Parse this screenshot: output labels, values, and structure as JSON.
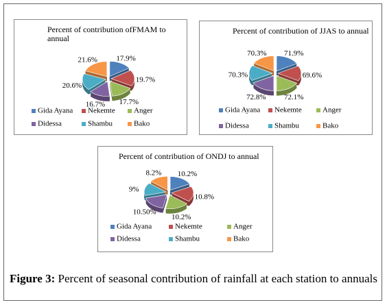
{
  "chart_data": [
    {
      "type": "pie",
      "title": "Percent of contribution ofFMAM to annual",
      "categories": [
        "Gida Ayana",
        "Nekemte",
        "Anger",
        "Didessa",
        "Shambu",
        "Bako"
      ],
      "values": [
        17.9,
        19.7,
        17.7,
        16.7,
        20.6,
        21.6
      ],
      "value_labels": [
        "17.9%",
        "19.7%",
        "17.7%",
        "16.7%",
        "20.6%",
        "21.6%"
      ],
      "colors": [
        "#4f81bd",
        "#c0504d",
        "#9bbb59",
        "#8064a2",
        "#4bacc6",
        "#f79646"
      ]
    },
    {
      "type": "pie",
      "title": "Percent of contribution of JJAS to annual",
      "categories": [
        "Gida Ayana",
        "Nekemte",
        "Anger",
        "Didessa",
        "Shambu",
        "Bako"
      ],
      "values": [
        71.9,
        69.6,
        72.1,
        72.8,
        70.3,
        70.3
      ],
      "value_labels": [
        "71.9%",
        "69.6%",
        "72.1%",
        "72.8%",
        "70.3%",
        "70.3%"
      ],
      "colors": [
        "#4f81bd",
        "#c0504d",
        "#9bbb59",
        "#8064a2",
        "#4bacc6",
        "#f79646"
      ]
    },
    {
      "type": "pie",
      "title": "Percent of contribution of  ONDJ to annual",
      "categories": [
        "Gida Ayana",
        "Nekemte",
        "Anger",
        "Didessa",
        "Shambu",
        "Bako"
      ],
      "values": [
        10.2,
        10.8,
        10.2,
        10.5,
        9,
        8.2
      ],
      "value_labels": [
        "10.2%",
        "10.8%",
        "10.2%",
        "10.50%",
        "9%",
        "8.2%"
      ],
      "colors": [
        "#4f81bd",
        "#c0504d",
        "#9bbb59",
        "#8064a2",
        "#4bacc6",
        "#f79646"
      ]
    }
  ],
  "caption": {
    "label": "Figure 3:",
    "text": " Percent of seasonal contribution of rainfall at each station to annuals"
  }
}
